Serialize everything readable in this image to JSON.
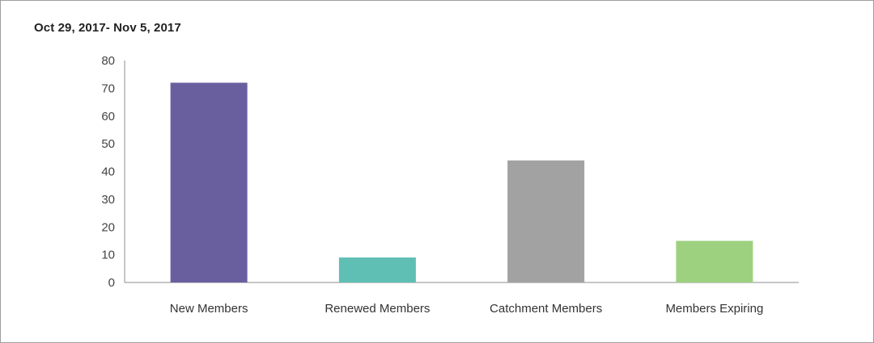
{
  "chart_data": {
    "type": "bar",
    "title": "Oct 29, 2017- Nov 5, 2017",
    "categories": [
      "New Members",
      "Renewed Members",
      "Catchment Members",
      "Members Expiring"
    ],
    "values": [
      72,
      9,
      44,
      15
    ],
    "colors": [
      "#6a5f9e",
      "#5fbfb4",
      "#a2a2a2",
      "#9ed17f"
    ],
    "ylim": [
      0,
      80
    ],
    "yticks": [
      0,
      10,
      20,
      30,
      40,
      50,
      60,
      70,
      80
    ],
    "grid": false,
    "legend": "none"
  }
}
